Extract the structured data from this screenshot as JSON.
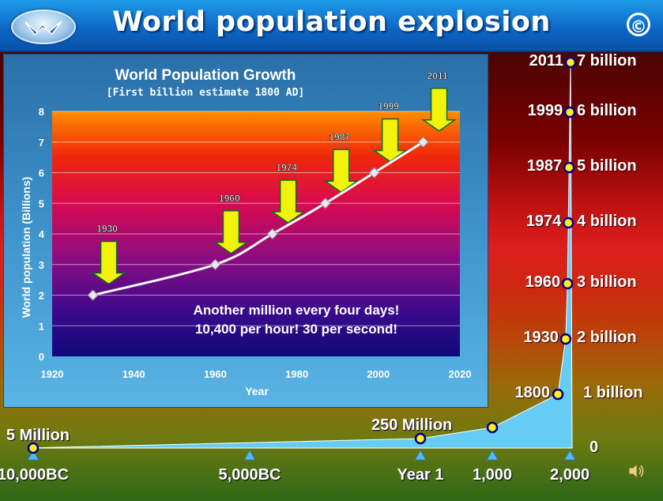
{
  "header": {
    "title": "World population explosion",
    "copyright_symbol": "©"
  },
  "inset_chart": {
    "title": "World Population Growth",
    "subtitle": "[First billion estimate 1800 AD]",
    "annotation_line1": "Another million every four days!",
    "annotation_line2": "10,400 per hour! 30 per second!"
  },
  "chart_data": [
    {
      "type": "line",
      "title": "World Population Growth",
      "subtitle": "[First billion estimate 1800 AD]",
      "xlabel": "Year",
      "ylabel": "World population (Billions)",
      "xlim": [
        1920,
        2020
      ],
      "ylim": [
        0,
        8
      ],
      "x_ticks": [
        1920,
        1940,
        1960,
        1980,
        2000,
        2020
      ],
      "y_ticks": [
        0,
        1,
        2,
        3,
        4,
        5,
        6,
        7,
        8
      ],
      "grid": true,
      "x": [
        1930,
        1960,
        1974,
        1987,
        1999,
        2011
      ],
      "values": [
        2,
        3,
        4,
        5,
        6,
        7
      ],
      "arrow_labels": [
        "1930",
        "1960",
        "1974",
        "1987",
        "1999",
        "2011"
      ],
      "colors": {
        "line": "#ffffff",
        "arrow": "#f2f20a",
        "arrow_outline": "#0a6a2a"
      }
    },
    {
      "type": "area",
      "title": "",
      "xlabel": "",
      "ylabel": "",
      "x_tick_labels": [
        "10,000BC",
        "5,000BC",
        "Year 1",
        "1,000",
        "2,000"
      ],
      "x_tick_years": [
        -10000,
        -5000,
        1,
        1000,
        2000
      ],
      "milestones": [
        {
          "year": -10000,
          "population_billions": 0.005,
          "label": "5 Million"
        },
        {
          "year": 1,
          "population_billions": 0.25,
          "label": "250 Million"
        },
        {
          "year": 1000,
          "population_billions": 0.31,
          "label": ""
        },
        {
          "year": 1800,
          "population_billions": 1,
          "label": "1800",
          "value_label": "1 billion"
        },
        {
          "year": 1930,
          "population_billions": 2,
          "label": "1930",
          "value_label": "2 billion"
        },
        {
          "year": 1960,
          "population_billions": 3,
          "label": "1960",
          "value_label": "3 billion"
        },
        {
          "year": 1974,
          "population_billions": 4,
          "label": "1974",
          "value_label": "4 billion"
        },
        {
          "year": 1987,
          "population_billions": 5,
          "label": "1987",
          "value_label": "5 billion"
        },
        {
          "year": 1999,
          "population_billions": 6,
          "label": "1999",
          "value_label": "6 billion"
        },
        {
          "year": 2011,
          "population_billions": 7,
          "label": "2011",
          "value_label": "7 billion"
        }
      ],
      "zero_label": "0",
      "colors": {
        "area": "#66ccf4",
        "marker": "#ffee22",
        "marker_outline": "#000088",
        "tick_triangle": "#55b8ee"
      }
    }
  ]
}
